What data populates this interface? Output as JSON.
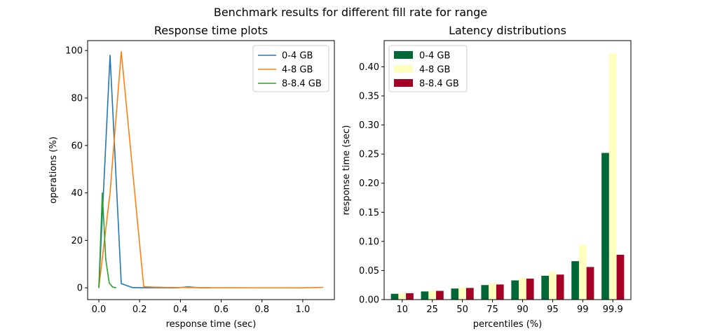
{
  "suptitle": "Benchmark results for different fill rate for range",
  "chart_data": [
    {
      "type": "line",
      "title": "Response time plots",
      "xlabel": "response time (sec)",
      "ylabel": "operations (%)",
      "xlim": [
        -0.055,
        1.155
      ],
      "ylim": [
        -4.96,
        104.2
      ],
      "xticks": [
        "0.0",
        "0.2",
        "0.4",
        "0.6",
        "0.8",
        "1.0"
      ],
      "xtick_values": [
        0.0,
        0.2,
        0.4,
        0.6,
        0.8,
        1.0
      ],
      "yticks": [
        "0",
        "20",
        "40",
        "60",
        "80",
        "100"
      ],
      "ytick_values": [
        0,
        20,
        40,
        60,
        80,
        100
      ],
      "legend_position": "top-right",
      "series": [
        {
          "name": "0-4   GB",
          "color": "#1f77b4",
          "x": [
            0.0,
            0.055,
            0.11,
            0.165,
            0.22,
            0.275,
            0.33,
            0.385,
            0.44,
            0.495,
            0.55
          ],
          "y": [
            0.0,
            98.0,
            1.8,
            0.1,
            0.05,
            0.03,
            0.02,
            0.02,
            0.4,
            0.02,
            0.0
          ]
        },
        {
          "name": "4-8   GB",
          "color": "#ff7f0e",
          "x": [
            0.0,
            0.055,
            0.11,
            0.165,
            0.22,
            0.275,
            0.33,
            0.44,
            0.55,
            0.66,
            0.77,
            0.88,
            0.99,
            1.1
          ],
          "y": [
            0.0,
            40.0,
            99.5,
            50.0,
            0.5,
            0.3,
            0.2,
            0.1,
            0.05,
            0.03,
            0.02,
            0.02,
            0.0,
            0.2
          ]
        },
        {
          "name": "8-8.4 GB",
          "color": "#2ca02c",
          "x": [
            0.0,
            0.017,
            0.034,
            0.051,
            0.068,
            0.085
          ],
          "y": [
            0.0,
            40.0,
            12.0,
            2.0,
            0.3,
            0.0
          ]
        }
      ]
    },
    {
      "type": "bar",
      "title": "Latency distributions",
      "xlabel": "percentiles (%)",
      "ylabel": "response time (sec)",
      "categories": [
        "10",
        "25",
        "50",
        "75",
        "90",
        "95",
        "99",
        "99.9"
      ],
      "ylim": [
        0,
        0.445
      ],
      "yticks": [
        "0.00",
        "0.05",
        "0.10",
        "0.15",
        "0.20",
        "0.25",
        "0.30",
        "0.35",
        "0.40"
      ],
      "ytick_values": [
        0.0,
        0.05,
        0.1,
        0.15,
        0.2,
        0.25,
        0.3,
        0.35,
        0.4
      ],
      "legend_position": "top-left",
      "series": [
        {
          "name": "0-4   GB",
          "color": "#006837",
          "values": [
            0.01,
            0.014,
            0.019,
            0.025,
            0.033,
            0.041,
            0.066,
            0.252
          ]
        },
        {
          "name": "4-8   GB",
          "color": "#ffffbf",
          "values": [
            0.011,
            0.015,
            0.021,
            0.028,
            0.037,
            0.048,
            0.094,
            0.423
          ]
        },
        {
          "name": "8-8.4 GB",
          "color": "#a50026",
          "values": [
            0.011,
            0.015,
            0.02,
            0.026,
            0.036,
            0.043,
            0.056,
            0.077
          ]
        }
      ]
    }
  ]
}
